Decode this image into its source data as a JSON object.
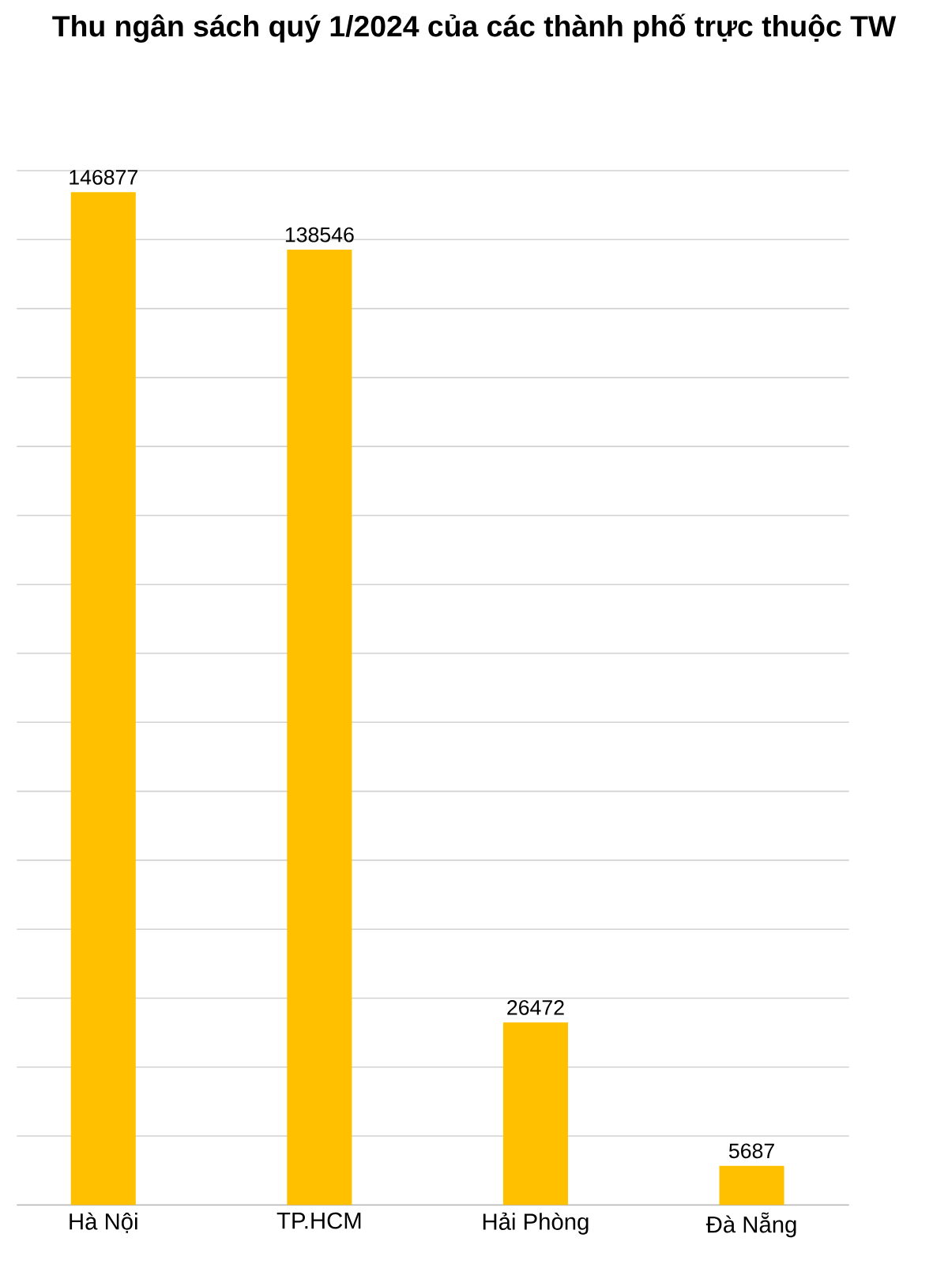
{
  "chart_data": {
    "type": "bar",
    "title": "Thu ngân sách quý 1/2024 của các thành phố trực thuộc TW",
    "categories": [
      "Hà Nội",
      "TP.HCM",
      "Hải Phòng",
      "Đà Nẵng"
    ],
    "values": [
      146877,
      138546,
      26472,
      5687
    ],
    "color": "#ffc000",
    "tick_labels": "x",
    "grid": "y",
    "data_labels": true
  }
}
